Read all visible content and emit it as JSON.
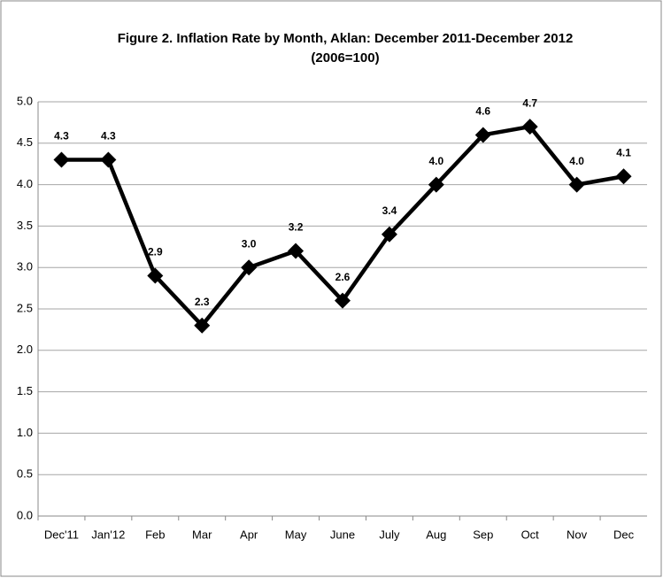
{
  "chart_data": {
    "type": "line",
    "title": "Figure 2. Inflation Rate by Month, Aklan: December 2011-December 2012",
    "subtitle": "(2006=100)",
    "categories": [
      "Dec'11",
      "Jan'12",
      "Feb",
      "Mar",
      "Apr",
      "May",
      "June",
      "July",
      "Aug",
      "Sep",
      "Oct",
      "Nov",
      "Dec"
    ],
    "values": [
      4.3,
      4.3,
      2.9,
      2.3,
      3.0,
      3.2,
      2.6,
      3.4,
      4.0,
      4.6,
      4.7,
      4.0,
      4.1
    ],
    "value_labels": [
      "4.3",
      "4.3",
      "2.9",
      "2.3",
      "3.0",
      "3.2",
      "2.6",
      "3.4",
      "4.0",
      "4.6",
      "4.7",
      "4.0",
      "4.1"
    ],
    "color": "#000000",
    "ylim": [
      0,
      5
    ],
    "yticks": [
      {
        "value": 0,
        "label": "0.0"
      },
      0.5,
      {
        "value": 1,
        "label": "1.0"
      },
      1.5,
      {
        "value": 2,
        "label": "2.0"
      },
      2.5,
      {
        "value": 3,
        "label": "3.0"
      },
      3.5,
      {
        "value": 4,
        "label": "4.0"
      },
      4.5,
      {
        "value": 5,
        "label": "5.0"
      }
    ],
    "grid": true
  }
}
